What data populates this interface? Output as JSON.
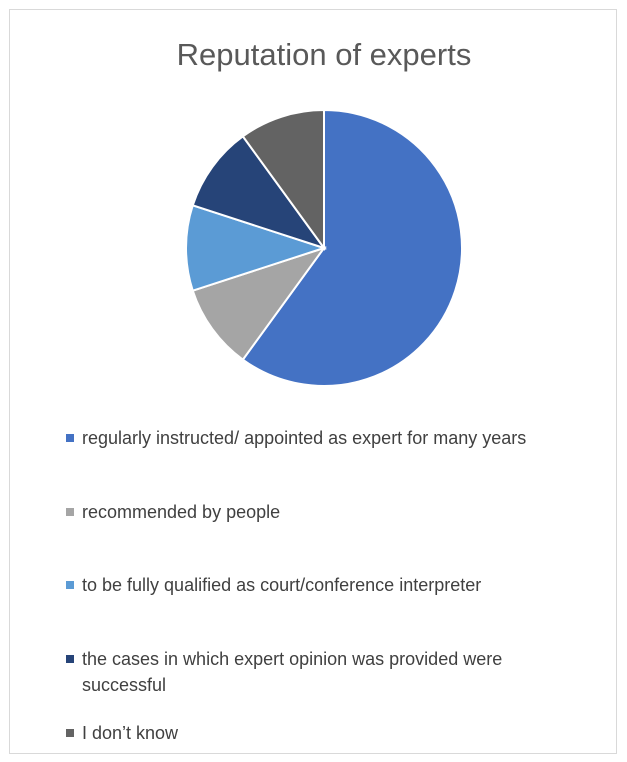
{
  "chart_data": {
    "type": "pie",
    "title": "Reputation of experts",
    "categories": [
      "regularly instructed/ appointed as expert for many years",
      "recommended by people",
      "to be fully qualified as court/conference interpreter",
      "the cases in which expert opinion was provided were successful",
      "I don’t know"
    ],
    "values": [
      60,
      10,
      10,
      10,
      10
    ],
    "colors": [
      "#4472c4",
      "#a5a5a5",
      "#5b9bd5",
      "#264478",
      "#636363"
    ],
    "legend": "bottom"
  }
}
